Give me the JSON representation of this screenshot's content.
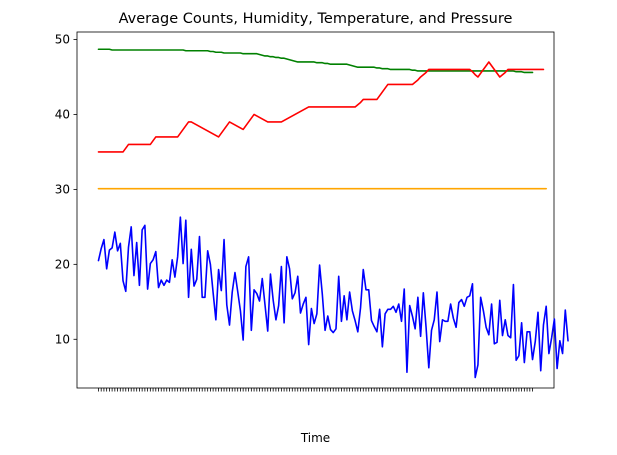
{
  "chart_data": {
    "type": "line",
    "title": "Average Counts, Humidity, Temperature, and Pressure",
    "xlabel": "Time",
    "ylabel": "",
    "ylim": [
      3.5,
      51.0
    ],
    "yticks": [
      10,
      20,
      30,
      40,
      50
    ],
    "grid": false,
    "legend": "none",
    "x_tick_labels_note": "",
    "series": [
      {
        "color": "#008000",
        "values": [
          48.7,
          48.7,
          48.7,
          48.7,
          48.7,
          48.6,
          48.6,
          48.6,
          48.6,
          48.6,
          48.6,
          48.6,
          48.6,
          48.6,
          48.6,
          48.6,
          48.6,
          48.6,
          48.6,
          48.6,
          48.6,
          48.6,
          48.6,
          48.6,
          48.6,
          48.6,
          48.6,
          48.6,
          48.6,
          48.6,
          48.6,
          48.6,
          48.5,
          48.5,
          48.5,
          48.5,
          48.5,
          48.5,
          48.5,
          48.5,
          48.5,
          48.4,
          48.4,
          48.3,
          48.3,
          48.3,
          48.2,
          48.2,
          48.2,
          48.2,
          48.2,
          48.2,
          48.2,
          48.1,
          48.1,
          48.1,
          48.1,
          48.1,
          48.1,
          48.0,
          47.9,
          47.8,
          47.8,
          47.7,
          47.7,
          47.6,
          47.6,
          47.5,
          47.5,
          47.4,
          47.3,
          47.2,
          47.1,
          47.0,
          47.0,
          47.0,
          47.0,
          47.0,
          47.0,
          47.0,
          46.9,
          46.9,
          46.9,
          46.8,
          46.8,
          46.7,
          46.7,
          46.7,
          46.7,
          46.7,
          46.7,
          46.7,
          46.6,
          46.5,
          46.4,
          46.3,
          46.3,
          46.3,
          46.3,
          46.3,
          46.3,
          46.3,
          46.2,
          46.2,
          46.1,
          46.1,
          46.1,
          46.0,
          46.0,
          46.0,
          46.0,
          46.0,
          46.0,
          46.0,
          46.0,
          45.9,
          45.9,
          45.8,
          45.8,
          45.8,
          45.8,
          45.8,
          45.8,
          45.8,
          45.8,
          45.8,
          45.8,
          45.8,
          45.8,
          45.8,
          45.8,
          45.8,
          45.8,
          45.8,
          45.8,
          45.8,
          45.8,
          45.8,
          45.8,
          45.8,
          45.8,
          45.8,
          45.8,
          45.8,
          45.8,
          45.8,
          45.8,
          45.8,
          45.8,
          45.8,
          45.8,
          45.8,
          45.8,
          45.7,
          45.7,
          45.7,
          45.6,
          45.6,
          45.6,
          45.6
        ]
      },
      {
        "color": "#ff0000",
        "values": [
          35,
          35,
          35,
          35,
          35,
          35,
          35,
          35,
          35,
          35,
          35.5,
          36,
          36,
          36,
          36,
          36,
          36,
          36,
          36,
          36,
          36.5,
          37,
          37,
          37,
          37,
          37,
          37,
          37,
          37,
          37,
          37.5,
          38,
          38.5,
          39,
          39,
          38.8,
          38.6,
          38.4,
          38.2,
          38,
          37.8,
          37.6,
          37.4,
          37.2,
          37,
          37.5,
          38,
          38.5,
          39,
          38.8,
          38.6,
          38.4,
          38.2,
          38,
          38.5,
          39,
          39.5,
          40,
          39.8,
          39.6,
          39.4,
          39.2,
          39,
          39,
          39,
          39,
          39,
          39,
          39.2,
          39.4,
          39.6,
          39.8,
          40,
          40.2,
          40.4,
          40.6,
          40.8,
          41,
          41,
          41,
          41,
          41,
          41,
          41,
          41,
          41,
          41,
          41,
          41,
          41,
          41,
          41,
          41,
          41,
          41,
          41.3,
          41.6,
          42,
          42,
          42,
          42,
          42,
          42,
          42.5,
          43,
          43.5,
          44,
          44,
          44,
          44,
          44,
          44,
          44,
          44,
          44,
          44,
          44.3,
          44.6,
          45,
          45.3,
          45.6,
          46,
          46,
          46,
          46,
          46,
          46,
          46,
          46,
          46,
          46,
          46,
          46,
          46,
          46,
          46,
          46,
          45.7,
          45.3,
          45,
          45.5,
          46,
          46.5,
          47,
          46.5,
          46,
          45.5,
          45,
          45.3,
          45.6,
          46,
          46,
          46,
          46,
          46,
          46,
          46,
          46,
          46,
          46,
          46,
          46,
          46,
          46
        ]
      },
      {
        "color": "#ffa500",
        "values": [
          30.1,
          30.1,
          30.1,
          30.1,
          30.1,
          30.1,
          30.1,
          30.1,
          30.1,
          30.1,
          30.1,
          30.1,
          30.1,
          30.1,
          30.1,
          30.1,
          30.1,
          30.1,
          30.1,
          30.1,
          30.1,
          30.1,
          30.1,
          30.1,
          30.1,
          30.1,
          30.1,
          30.1,
          30.1,
          30.1,
          30.1,
          30.1,
          30.1,
          30.1,
          30.1,
          30.1,
          30.1,
          30.1,
          30.1,
          30.1,
          30.1,
          30.1,
          30.1,
          30.1,
          30.1,
          30.1,
          30.1,
          30.1,
          30.1,
          30.1,
          30.1,
          30.1,
          30.1,
          30.1,
          30.1,
          30.1,
          30.1,
          30.1,
          30.1,
          30.1,
          30.1,
          30.1,
          30.1,
          30.1,
          30.1,
          30.1,
          30.1,
          30.1,
          30.1,
          30.1,
          30.1,
          30.1,
          30.1,
          30.1,
          30.1,
          30.1,
          30.1,
          30.1,
          30.1,
          30.1,
          30.1,
          30.1,
          30.1,
          30.1,
          30.1,
          30.1,
          30.1,
          30.1,
          30.1,
          30.1,
          30.1,
          30.1,
          30.1,
          30.1,
          30.1,
          30.1,
          30.1,
          30.1,
          30.1,
          30.1,
          30.1,
          30.1,
          30.1,
          30.1,
          30.1,
          30.1,
          30.1,
          30.1,
          30.1,
          30.1,
          30.1,
          30.1,
          30.1,
          30.1,
          30.1,
          30.1,
          30.1,
          30.1,
          30.1,
          30.1,
          30.1,
          30.1,
          30.1,
          30.1,
          30.1,
          30.1,
          30.1,
          30.1,
          30.1,
          30.1,
          30.1,
          30.1,
          30.1,
          30.1,
          30.1,
          30.1,
          30.1,
          30.1,
          30.1,
          30.1,
          30.1,
          30.1,
          30.1,
          30.1,
          30.1,
          30.1,
          30.1,
          30.1,
          30.1,
          30.1,
          30.1,
          30.1,
          30.1,
          30.1,
          30.1,
          30.1,
          30.1,
          30.1,
          30.1,
          30.1,
          30.1,
          30.1,
          30.1,
          30.1,
          30.1
        ]
      },
      {
        "color": "#0000ff",
        "values": [
          20.5,
          22.1,
          23.3,
          19.4,
          21.9,
          22.2,
          24.3,
          21.8,
          22.8,
          17.8,
          16.4,
          22.3,
          25.0,
          18.5,
          22.9,
          17.2,
          24.6,
          25.2,
          16.7,
          20.1,
          20.6,
          21.7,
          16.9,
          17.9,
          17.2,
          17.9,
          17.6,
          20.6,
          18.3,
          21.0,
          26.3,
          20.1,
          25.9,
          15.6,
          22.0,
          17.1,
          18.0,
          23.7,
          15.6,
          15.6,
          21.8,
          20.0,
          16.2,
          12.6,
          19.3,
          16.5,
          23.3,
          14.6,
          11.9,
          16.3,
          18.9,
          16.4,
          13.8,
          9.9,
          19.7,
          21.0,
          11.2,
          16.6,
          16.1,
          15.1,
          18.1,
          14.6,
          11.1,
          18.7,
          15.2,
          12.6,
          14.5,
          19.7,
          12.2,
          21.0,
          19.4,
          15.4,
          16.2,
          18.4,
          13.5,
          14.7,
          15.6,
          9.3,
          14.1,
          12.1,
          13.4,
          19.9,
          16.0,
          11.2,
          13.1,
          11.3,
          10.9,
          11.4,
          18.4,
          12.4,
          15.8,
          12.6,
          16.3,
          13.8,
          12.5,
          11.0,
          14.2,
          19.3,
          16.6,
          16.6,
          12.5,
          11.7,
          11.0,
          14.0,
          9.0,
          13.4,
          14.0,
          14.0,
          14.4,
          13.6,
          14.7,
          12.4,
          16.7,
          5.6,
          14.5,
          13.1,
          11.4,
          15.6,
          10.4,
          16.2,
          11.6,
          6.2,
          11.2,
          12.6,
          16.3,
          9.7,
          12.6,
          12.4,
          12.4,
          14.7,
          12.8,
          11.6,
          14.9,
          15.3,
          14.4,
          15.6,
          15.8,
          17.4,
          4.9,
          6.6,
          15.6,
          13.8,
          11.6,
          10.6,
          14.7,
          9.4,
          9.6,
          15.2,
          10.5,
          12.6,
          10.5,
          10.2,
          17.3,
          7.2,
          7.8,
          12.2,
          6.9,
          11.0,
          11.0,
          7.3,
          9.7,
          13.6,
          5.8,
          11.9,
          14.4,
          8.1,
          10.2,
          12.7,
          6.1,
          9.8,
          8.1,
          13.9,
          9.8
        ]
      }
    ]
  }
}
